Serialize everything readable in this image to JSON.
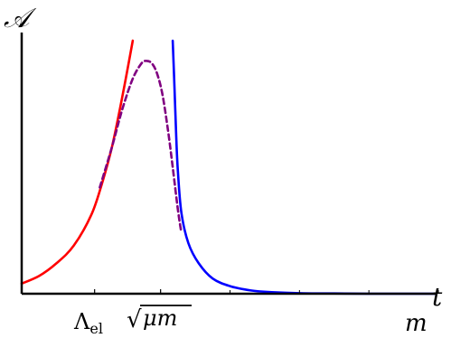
{
  "chart_data": {
    "type": "line",
    "title": "",
    "ylabel": "𝒜",
    "xlabel": "t",
    "x_tick_labels": [
      {
        "text": "Λ",
        "sub": "el",
        "t": 0.21
      },
      {
        "text": "√",
        "over": "μm",
        "t": 0.4
      }
    ],
    "x_bottom_label": "m",
    "xlim": [
      0,
      1.2
    ],
    "ylim": [
      0,
      1
    ],
    "grid": false,
    "legend": "none",
    "series": [
      {
        "color": "#ff0000",
        "style": "solid",
        "x": [
          0.0,
          0.05,
          0.1,
          0.15,
          0.2,
          0.23,
          0.26,
          0.29,
          0.32
        ],
        "y": [
          0.04,
          0.07,
          0.12,
          0.19,
          0.31,
          0.43,
          0.58,
          0.78,
          1.0
        ]
      },
      {
        "color": "#800080",
        "style": "dashed",
        "x": [
          0.225,
          0.26,
          0.29,
          0.32,
          0.345,
          0.36,
          0.375,
          0.39,
          0.405,
          0.42,
          0.435,
          0.45,
          0.46
        ],
        "y": [
          0.42,
          0.58,
          0.73,
          0.85,
          0.91,
          0.92,
          0.91,
          0.87,
          0.79,
          0.66,
          0.5,
          0.33,
          0.24
        ]
      },
      {
        "color": "#0000ff",
        "style": "solid",
        "x": [
          0.435,
          0.44,
          0.445,
          0.45,
          0.46,
          0.48,
          0.51,
          0.55,
          0.6,
          0.66,
          0.72,
          0.8,
          0.9,
          1.0,
          1.1,
          1.19
        ],
        "y": [
          1.0,
          0.82,
          0.62,
          0.48,
          0.32,
          0.2,
          0.12,
          0.06,
          0.03,
          0.013,
          0.006,
          0.002,
          0.001,
          0.0,
          0.0,
          0.0
        ]
      }
    ]
  }
}
